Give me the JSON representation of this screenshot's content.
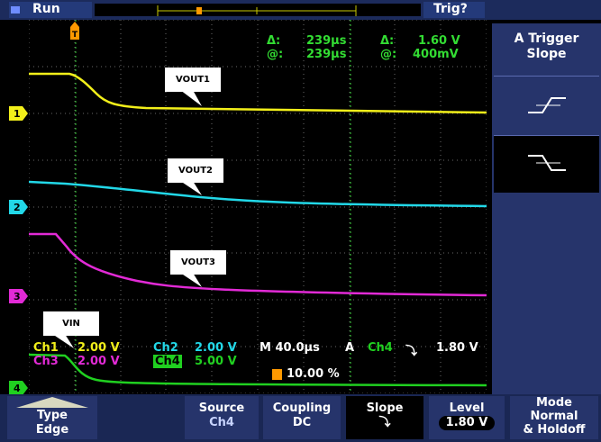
{
  "status": {
    "run_label": "Run",
    "trigger_status": "Trig?"
  },
  "cursor_readout": {
    "delta_sym": "Δ:",
    "delta_time": "239μs",
    "at_sym": "@:",
    "at_time": "239μs",
    "delta_sym2": "Δ:",
    "delta_volt": "1.60 V",
    "at_sym2": "@:",
    "at_volt": "400mV"
  },
  "channels": [
    {
      "marker": "1",
      "color": "#f2ef1a"
    },
    {
      "marker": "2",
      "color": "#22d8e8"
    },
    {
      "marker": "3",
      "color": "#e22ad6"
    },
    {
      "marker": "4",
      "color": "#20d020"
    }
  ],
  "annotations": {
    "vout1": "VOUT1",
    "vout2": "VOUT2",
    "vout3": "VOUT3",
    "vin": "VIN"
  },
  "scale_readout": {
    "ch1_label": "Ch1",
    "ch1_scale": "2.00 V",
    "ch2_label": "Ch2",
    "ch2_scale": "2.00 V",
    "ch3_label": "Ch3",
    "ch3_scale": "2.00 V",
    "ch4_label": "Ch4",
    "ch4_scale": "5.00 V",
    "timebase": "M 40.0μs",
    "trig_mode": "A",
    "trig_src": "Ch4",
    "trig_slope_sym": "⤵",
    "trig_level": "1.80 V",
    "trig_pos": "10.00 %"
  },
  "right_menu": {
    "title_line1": "A Trigger",
    "title_line2": "Slope"
  },
  "bottom_menu": {
    "type_label": "Type",
    "type_value": "Edge",
    "source_label": "Source",
    "source_value": "Ch4",
    "coupling_label": "Coupling",
    "coupling_value": "DC",
    "slope_label": "Slope",
    "slope_value": "⤵",
    "level_label": "Level",
    "level_value": "1.80 V",
    "mode_line1": "Mode",
    "mode_line2": "Normal",
    "mode_line3": "& Holdoff"
  }
}
